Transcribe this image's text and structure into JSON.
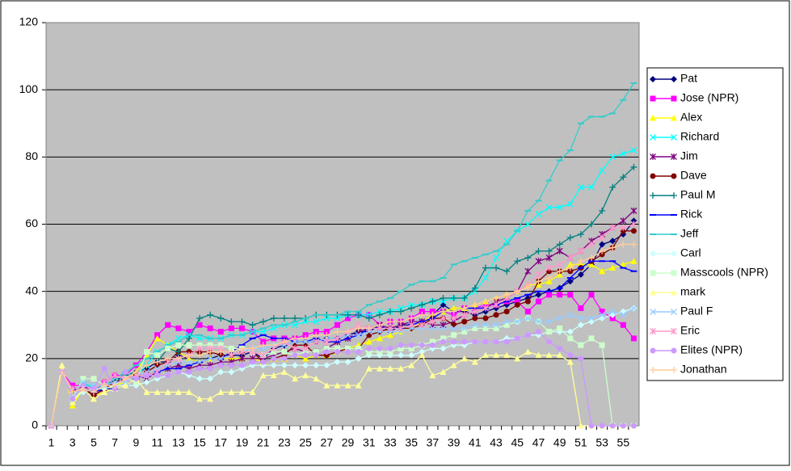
{
  "chart_data": {
    "type": "line",
    "categories": [
      1,
      null,
      3,
      null,
      5,
      null,
      7,
      null,
      9,
      null,
      11,
      null,
      13,
      null,
      15,
      null,
      17,
      null,
      19,
      null,
      21,
      null,
      23,
      null,
      25,
      null,
      27,
      null,
      29,
      null,
      31,
      null,
      33,
      null,
      35,
      null,
      37,
      null,
      39,
      null,
      41,
      null,
      43,
      null,
      45,
      null,
      47,
      null,
      49,
      null,
      51,
      null,
      53,
      null,
      55,
      null
    ],
    "ylim": [
      0,
      120
    ],
    "yticks": [
      0,
      20,
      40,
      60,
      80,
      100,
      120
    ],
    "grid": true,
    "legend": "right",
    "series": [
      {
        "name": "Pat",
        "color": "#000080",
        "marker": "diamond",
        "values": [
          0,
          16,
          10,
          12,
          9,
          11,
          14,
          14,
          16,
          17,
          19,
          19,
          21,
          20,
          19,
          20,
          21,
          21,
          21,
          22,
          20,
          23,
          24,
          25,
          25,
          25,
          26,
          26,
          27,
          28,
          28,
          30,
          28,
          30,
          30,
          31,
          33,
          36,
          34,
          34,
          33,
          34,
          35,
          36,
          37,
          38,
          39,
          40,
          41,
          43,
          45,
          48,
          54,
          55,
          57,
          61
        ]
      },
      {
        "name": "Jose (NPR)",
        "color": "#FF00FF",
        "marker": "square",
        "values": [
          0,
          16,
          12,
          12,
          10,
          13,
          15,
          15,
          18,
          22,
          27,
          30,
          29,
          28,
          30,
          29,
          28,
          29,
          29,
          28,
          25,
          26,
          26,
          26,
          27,
          28,
          28,
          30,
          32,
          33,
          33,
          30,
          31,
          31,
          32,
          34,
          34,
          34,
          33,
          35,
          35,
          36,
          36,
          37,
          37,
          34,
          37,
          39,
          39,
          39,
          35,
          39,
          34,
          32,
          30,
          26
        ]
      },
      {
        "name": "Alex",
        "color": "#FFFF00",
        "marker": "triangle",
        "values": [
          0,
          18,
          6,
          11,
          9,
          10,
          12,
          13,
          16,
          21,
          26,
          24,
          22,
          20,
          19,
          20,
          20,
          20,
          20,
          20,
          19,
          20,
          20,
          21,
          20,
          21,
          21,
          22,
          23,
          24,
          25,
          26,
          27,
          28,
          29,
          31,
          33,
          34,
          35,
          35,
          36,
          37,
          38,
          39,
          40,
          42,
          42,
          43,
          45,
          48,
          48,
          48,
          46,
          47,
          48,
          49
        ]
      },
      {
        "name": "Richard",
        "color": "#00FFFF",
        "marker": "x",
        "values": [
          0,
          16,
          8,
          12,
          12,
          12,
          13,
          14,
          15,
          18,
          22,
          24,
          26,
          27,
          26,
          26,
          26,
          27,
          27,
          28,
          28,
          29,
          30,
          30,
          31,
          31,
          32,
          32,
          33,
          33,
          33,
          34,
          34,
          35,
          36,
          36,
          37,
          37,
          38,
          38,
          40,
          44,
          50,
          55,
          58,
          60,
          63,
          65,
          65,
          66,
          71,
          71,
          76,
          80,
          81,
          82
        ]
      },
      {
        "name": "Jim",
        "color": "#800080",
        "marker": "star",
        "values": [
          0,
          16,
          10,
          12,
          10,
          11,
          13,
          14,
          15,
          14,
          16,
          17,
          18,
          17,
          18,
          18,
          19,
          19,
          20,
          20,
          20,
          21,
          22,
          23,
          22,
          22,
          23,
          25,
          26,
          28,
          29,
          30,
          29,
          30,
          31,
          31,
          30,
          30,
          31,
          33,
          34,
          35,
          37,
          38,
          40,
          46,
          49,
          50,
          52,
          50,
          52,
          55,
          57,
          59,
          61,
          64
        ]
      },
      {
        "name": "Dave",
        "color": "#800000",
        "marker": "circle",
        "values": [
          0,
          16,
          10,
          11,
          9,
          11,
          13,
          14,
          15,
          16,
          18,
          19,
          22,
          22,
          22,
          22,
          21,
          21,
          22,
          22,
          19,
          20,
          21,
          24,
          24,
          21,
          21,
          22,
          23,
          23,
          27,
          28,
          29,
          29,
          29,
          30,
          32,
          32,
          30,
          31,
          32,
          32,
          33,
          34,
          36,
          37,
          43,
          46,
          46,
          46,
          47,
          49,
          51,
          53,
          58,
          58
        ]
      },
      {
        "name": "Paul M",
        "color": "#008080",
        "marker": "plus",
        "values": [
          0,
          16,
          10,
          11,
          10,
          12,
          13,
          15,
          16,
          18,
          19,
          23,
          22,
          26,
          32,
          33,
          32,
          31,
          31,
          30,
          31,
          32,
          32,
          32,
          32,
          33,
          33,
          33,
          33,
          33,
          32,
          33,
          34,
          34,
          35,
          36,
          37,
          38,
          38,
          38,
          41,
          47,
          47,
          46,
          49,
          50,
          52,
          52,
          54,
          56,
          57,
          60,
          64,
          71,
          74,
          77
        ]
      },
      {
        "name": "Rick",
        "color": "#0000FF",
        "marker": "dash",
        "values": [
          0,
          16,
          11,
          11,
          10,
          11,
          11,
          12,
          14,
          15,
          16,
          17,
          17,
          18,
          19,
          20,
          20,
          22,
          24,
          26,
          27,
          26,
          26,
          25,
          25,
          26,
          25,
          25,
          26,
          27,
          29,
          29,
          29,
          29,
          30,
          31,
          32,
          34,
          34,
          35,
          35,
          35,
          36,
          37,
          38,
          39,
          40,
          40,
          41,
          44,
          47,
          49,
          49,
          49,
          47,
          46
        ]
      },
      {
        "name": "Jeff",
        "color": "#33CCCC",
        "marker": "dash",
        "values": [
          0,
          16,
          9,
          13,
          11,
          12,
          14,
          16,
          18,
          20,
          22,
          24,
          25,
          27,
          27,
          26,
          26,
          27,
          27,
          28,
          29,
          30,
          30,
          31,
          32,
          33,
          33,
          33,
          34,
          34,
          36,
          37,
          38,
          40,
          42,
          43,
          43,
          44,
          48,
          49,
          50,
          51,
          52,
          54,
          58,
          64,
          67,
          73,
          79,
          82,
          90,
          92,
          92,
          93,
          97,
          102
        ]
      },
      {
        "name": "Carl",
        "color": "#CCFFFF",
        "marker": "diamond",
        "values": [
          0,
          16,
          8,
          10,
          11,
          11,
          12,
          12,
          12,
          13,
          14,
          15,
          16,
          15,
          14,
          14,
          16,
          16,
          17,
          18,
          18,
          18,
          18,
          18,
          18,
          18,
          18,
          19,
          19,
          20,
          21,
          21,
          21,
          21,
          21,
          22,
          23,
          23,
          24,
          24,
          25,
          25,
          25,
          26,
          26,
          27,
          27,
          28,
          28,
          28,
          30,
          31,
          32,
          33,
          34,
          35
        ]
      },
      {
        "name": "Masscools (NPR)",
        "color": "#CCFFCC",
        "marker": "square",
        "values": [
          0,
          16,
          8,
          14,
          14,
          12,
          12,
          14,
          13,
          22,
          21,
          23,
          24,
          24,
          24,
          24,
          24,
          23,
          23,
          22,
          21,
          22,
          22,
          21,
          22,
          22,
          23,
          23,
          23,
          23,
          22,
          22,
          22,
          23,
          23,
          24,
          25,
          26,
          27,
          28,
          29,
          29,
          29,
          30,
          31,
          32,
          31,
          28,
          29,
          26,
          24,
          26,
          24,
          0,
          0,
          0
        ]
      },
      {
        "name": "mark",
        "color": "#FFFF99",
        "marker": "triangle",
        "values": [
          0,
          18,
          7,
          11,
          8,
          10,
          11,
          12,
          14,
          10,
          10,
          10,
          10,
          10,
          8,
          8,
          10,
          10,
          10,
          10,
          15,
          15,
          16,
          14,
          15,
          14,
          12,
          12,
          12,
          12,
          17,
          17,
          17,
          17,
          18,
          21,
          15,
          16,
          18,
          20,
          19,
          21,
          21,
          21,
          20,
          22,
          21,
          21,
          21,
          19,
          0,
          0,
          0,
          0,
          0,
          0
        ]
      },
      {
        "name": "Paul F",
        "color": "#99CCFF",
        "marker": "x",
        "values": [
          0,
          16,
          9,
          13,
          12,
          12,
          13,
          13,
          15,
          16,
          17,
          18,
          19,
          19,
          19,
          20,
          20,
          21,
          22,
          23,
          23,
          24,
          24,
          25,
          25,
          25,
          26,
          26,
          27,
          27,
          28,
          28,
          28,
          28,
          29,
          29,
          29,
          29,
          29,
          29,
          30,
          30,
          30,
          31,
          31,
          32,
          31,
          31,
          32,
          33,
          32,
          32,
          33,
          34,
          33,
          35
        ]
      },
      {
        "name": "Eric",
        "color": "#FF99CC",
        "marker": "star",
        "values": [
          0,
          16,
          11,
          11,
          11,
          13,
          15,
          14,
          15,
          15,
          16,
          19,
          20,
          21,
          23,
          23,
          23,
          21,
          22,
          22,
          21,
          23,
          25,
          23,
          23,
          25,
          25,
          26,
          28,
          30,
          29,
          29,
          29,
          29,
          30,
          30,
          31,
          32,
          32,
          33,
          34,
          35,
          36,
          38,
          40,
          42,
          45,
          47,
          48,
          50,
          52,
          54,
          56,
          59,
          59,
          60
        ]
      },
      {
        "name": "Elites (NPR)",
        "color": "#CC99FF",
        "marker": "circle",
        "values": [
          0,
          16,
          8,
          12,
          11,
          17,
          11,
          16,
          14,
          15,
          15,
          15,
          16,
          16,
          17,
          17,
          18,
          18,
          18,
          19,
          19,
          20,
          20,
          21,
          21,
          21,
          22,
          22,
          22,
          22,
          23,
          23,
          23,
          24,
          24,
          24,
          24,
          25,
          25,
          25,
          25,
          25,
          25,
          25,
          26,
          27,
          28,
          25,
          23,
          21,
          20,
          0,
          0,
          0,
          0,
          0
        ]
      },
      {
        "name": "Jonathan",
        "color": "#FFCC99",
        "marker": "plus",
        "values": [
          0,
          16,
          10,
          11,
          10,
          12,
          12,
          14,
          16,
          18,
          19,
          20,
          20,
          21,
          21,
          22,
          22,
          22,
          23,
          23,
          24,
          24,
          25,
          26,
          26,
          27,
          27,
          28,
          28,
          29,
          29,
          30,
          31,
          31,
          32,
          33,
          33,
          34,
          34,
          35,
          36,
          37,
          38,
          39,
          40,
          41,
          43,
          44,
          46,
          47,
          49,
          50,
          52,
          53,
          54,
          54
        ]
      }
    ]
  }
}
